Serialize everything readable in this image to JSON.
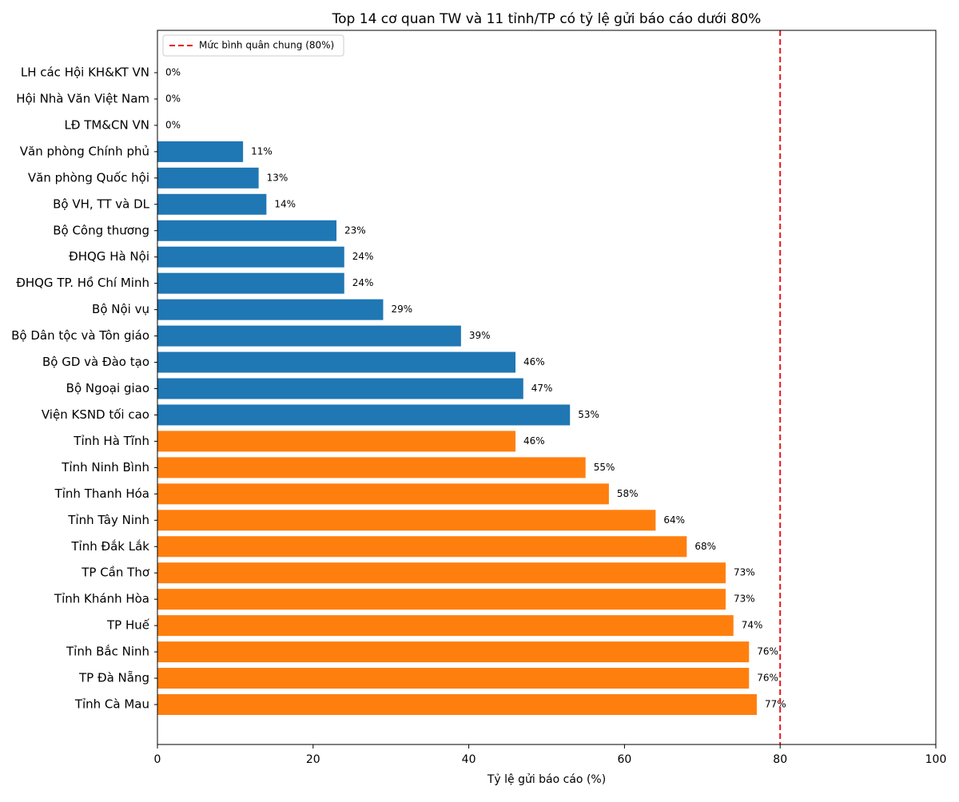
{
  "chart_data": {
    "type": "barh",
    "title": "Top 14 cơ quan TW và 11 tỉnh/TP có tỷ lệ gửi báo cáo dưới 80%",
    "x_label": "Tỷ lệ gửi báo cáo (%)",
    "categories": [
      "LH các Hội KH&KT VN",
      "Hội Nhà Văn Việt Nam",
      "LĐ TM&CN VN",
      "Văn phòng Chính phủ",
      "Văn phòng Quốc hội",
      "Bộ VH, TT và DL",
      "Bộ Công thương",
      "ĐHQG Hà Nội",
      "ĐHQG TP. Hồ Chí Minh",
      "Bộ Nội vụ",
      "Bộ Dân tộc và Tôn giáo",
      "Bộ GD và Đào tạo",
      "Bộ Ngoại giao",
      "Viện KSND tối cao",
      "Tỉnh Hà Tĩnh",
      "Tỉnh Ninh Bình",
      "Tỉnh Thanh Hóa",
      "Tỉnh Tây Ninh",
      "Tỉnh Đắk Lắk",
      "TP Cần Thơ",
      "Tỉnh Khánh Hòa",
      "TP Huế",
      "Tỉnh Bắc Ninh",
      "TP Đà Nẵng",
      "Tỉnh Cà Mau"
    ],
    "values": [
      0,
      0,
      0,
      11,
      13,
      14,
      23,
      24,
      24,
      29,
      39,
      46,
      47,
      53,
      46,
      55,
      58,
      64,
      68,
      73,
      73,
      74,
      76,
      76,
      77
    ],
    "value_labels": [
      "0%",
      "0%",
      "0%",
      "11%",
      "13%",
      "14%",
      "23%",
      "24%",
      "24%",
      "29%",
      "39%",
      "46%",
      "47%",
      "53%",
      "46%",
      "55%",
      "58%",
      "64%",
      "68%",
      "73%",
      "73%",
      "74%",
      "76%",
      "76%",
      "77%"
    ],
    "colors": [
      "#1f77b4",
      "#1f77b4",
      "#1f77b4",
      "#1f77b4",
      "#1f77b4",
      "#1f77b4",
      "#1f77b4",
      "#1f77b4",
      "#1f77b4",
      "#1f77b4",
      "#1f77b4",
      "#1f77b4",
      "#1f77b4",
      "#1f77b4",
      "#ff7f0e",
      "#ff7f0e",
      "#ff7f0e",
      "#ff7f0e",
      "#ff7f0e",
      "#ff7f0e",
      "#ff7f0e",
      "#ff7f0e",
      "#ff7f0e",
      "#ff7f0e",
      "#ff7f0e"
    ],
    "xlim": [
      0,
      100
    ],
    "xticks": [
      0,
      20,
      40,
      60,
      80,
      100
    ],
    "reference_line": {
      "value": 80,
      "label": "Mức bình quân chung (80%)",
      "color": "#e8141a"
    },
    "legend": "upper left"
  }
}
